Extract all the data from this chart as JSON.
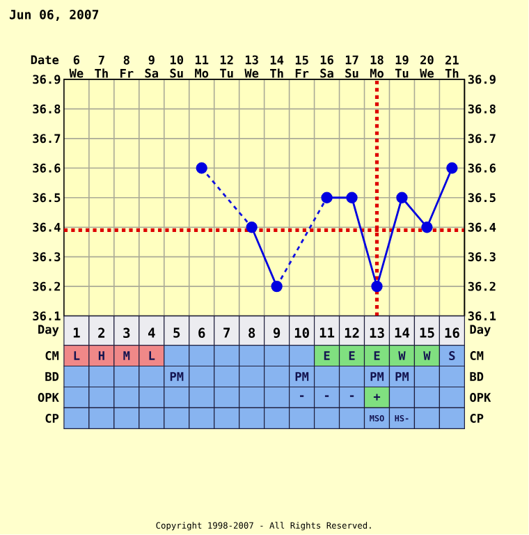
{
  "chart_data": [
    {
      "type": "line",
      "title": "Jun 06, 2007",
      "xlabel": "Date",
      "xlim": [
        "2007-06-05T12:00",
        "2007-06-21T12:00"
      ],
      "xticks": [
        {
          "value": "2007-06-06",
          "label": "6 We"
        },
        {
          "value": "2007-06-07",
          "label": "7 Th"
        },
        {
          "value": "2007-06-08",
          "label": "8 Fr"
        },
        {
          "value": "2007-06-09",
          "label": "9 Sa"
        },
        {
          "value": "2007-06-10",
          "label": "10 Su"
        },
        {
          "value": "2007-06-11",
          "label": "11 Mo"
        },
        {
          "value": "2007-06-12",
          "label": "12 Tu"
        },
        {
          "value": "2007-06-13",
          "label": "13 We"
        },
        {
          "value": "2007-06-14",
          "label": "14 Th"
        },
        {
          "value": "2007-06-15",
          "label": "15 Fr"
        },
        {
          "value": "2007-06-16",
          "label": "16 Sa"
        },
        {
          "value": "2007-06-17",
          "label": "17 Su"
        },
        {
          "value": "2007-06-18",
          "label": "18 Mo"
        },
        {
          "value": "2007-06-19",
          "label": "19 Tu"
        },
        {
          "value": "2007-06-20",
          "label": "20 We"
        },
        {
          "value": "2007-06-21",
          "label": "21 Th"
        }
      ],
      "ylim": [
        36.1,
        36.9
      ],
      "yticks": [
        36.1,
        36.2,
        36.3,
        36.4,
        36.5,
        36.6,
        36.7,
        36.8,
        36.9
      ],
      "y2lim": [
        36.1,
        36.9
      ],
      "y2ticks": [
        36.1,
        36.2,
        36.3,
        36.4,
        36.5,
        36.6,
        36.7,
        36.8,
        36.9
      ],
      "x2label": "Day",
      "x2lim": [
        0.5,
        16.5
      ],
      "x2ticks": [
        1,
        2,
        3,
        4,
        5,
        6,
        7,
        8,
        9,
        10,
        11,
        12,
        13,
        14,
        15,
        16
      ],
      "grid": true,
      "marker": "circle",
      "line_style": "solid",
      "series": [
        {
          "color": "#0000e0",
          "x": [
            "2007-06-11",
            "2007-06-12",
            "2007-06-13",
            "2007-06-14",
            "2007-06-15",
            "2007-06-16",
            "2007-06-17",
            "2007-06-18",
            "2007-06-19",
            "2007-06-20",
            "2007-06-21"
          ],
          "values": [
            36.6,
            null,
            36.4,
            36.2,
            null,
            36.5,
            36.5,
            36.2,
            36.5,
            36.4,
            36.6
          ]
        },
        {
          "color": "#1010e0",
          "x": [
            "2007-06-11",
            "2007-06-13"
          ],
          "values": [
            36.6,
            36.4
          ],
          "line_style": "dashed",
          "marker": "none"
        },
        {
          "color": "#1010e0",
          "x": [
            "2007-06-14",
            "2007-06-16"
          ],
          "values": [
            36.2,
            36.5
          ],
          "line_style": "dashed",
          "marker": "none"
        }
      ],
      "ref_lines": [
        {
          "axis": "y",
          "value": 36.39,
          "color": "#dd0000",
          "line_style": "dotted"
        },
        {
          "axis": "x",
          "value": "2007-06-18",
          "color": "#dd0000",
          "line_style": "dotted"
        }
      ],
      "annotations": [
        "Copyright 1998-2007 - All Rights Reserved."
      ]
    },
    {
      "type": "other",
      "y_categories": [
        "CM",
        "BD",
        "OPK",
        "CP"
      ],
      "y2_categories": [
        "CM",
        "BD",
        "OPK",
        "CP"
      ],
      "cell_labels": [
        [
          "L",
          "H",
          "M",
          "L",
          null,
          null,
          null,
          null,
          null,
          null,
          "E",
          "E",
          "E",
          "W",
          "W",
          "S"
        ],
        [
          null,
          null,
          null,
          null,
          "PM",
          null,
          null,
          null,
          null,
          "PM",
          null,
          null,
          "PM",
          "PM",
          null,
          null
        ],
        [
          null,
          null,
          null,
          null,
          null,
          null,
          null,
          null,
          null,
          "-",
          "-",
          "-",
          "+",
          null,
          null,
          null
        ],
        [
          null,
          null,
          null,
          null,
          null,
          null,
          null,
          null,
          null,
          null,
          null,
          null,
          "MSO",
          "HS-",
          null,
          null
        ]
      ],
      "colors": [
        [
          "#f08888",
          "#f08888",
          "#f08888",
          "#f08888",
          "#88b4f0",
          "#88b4f0",
          "#88b4f0",
          "#88b4f0",
          "#88b4f0",
          "#88b4f0",
          "#80e080",
          "#80e080",
          "#80e080",
          "#80e080",
          "#80e080",
          "#88b4f0"
        ],
        [
          "#88b4f0",
          "#88b4f0",
          "#88b4f0",
          "#88b4f0",
          "#88b4f0",
          "#88b4f0",
          "#88b4f0",
          "#88b4f0",
          "#88b4f0",
          "#88b4f0",
          "#88b4f0",
          "#88b4f0",
          "#88b4f0",
          "#88b4f0",
          "#88b4f0",
          "#88b4f0"
        ],
        [
          "#88b4f0",
          "#88b4f0",
          "#88b4f0",
          "#88b4f0",
          "#88b4f0",
          "#88b4f0",
          "#88b4f0",
          "#88b4f0",
          "#88b4f0",
          "#88b4f0",
          "#88b4f0",
          "#88b4f0",
          "#80e080",
          "#88b4f0",
          "#88b4f0",
          "#88b4f0"
        ],
        [
          "#88b4f0",
          "#88b4f0",
          "#88b4f0",
          "#88b4f0",
          "#88b4f0",
          "#88b4f0",
          "#88b4f0",
          "#88b4f0",
          "#88b4f0",
          "#88b4f0",
          "#88b4f0",
          "#88b4f0",
          "#88b4f0",
          "#88b4f0",
          "#88b4f0",
          "#88b4f0"
        ]
      ]
    }
  ]
}
